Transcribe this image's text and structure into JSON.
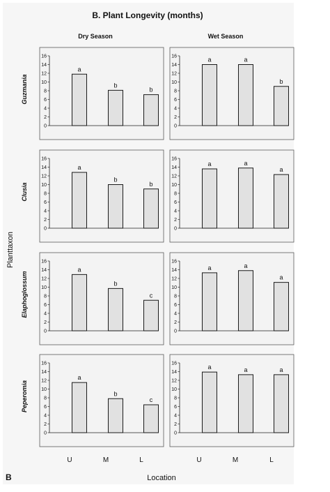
{
  "figure": {
    "title": "B.  Plant Longevity (months)",
    "panel_letter": "B",
    "row_axis_label": "Planttaxon",
    "x_axis_label": "Location",
    "column_headers": [
      "Dry Season",
      "Wet Season"
    ],
    "row_labels": [
      "Guzmania",
      "Clusia",
      "Elaphoglossum",
      "Peperomia"
    ]
  },
  "chart_data": [
    {
      "type": "bar",
      "row": "Guzmania",
      "column": "Dry Season",
      "categories": [
        "U",
        "M",
        "L"
      ],
      "values": [
        11.8,
        8.1,
        7.1
      ],
      "labels": [
        "a",
        "b",
        "b"
      ],
      "ylim": [
        0,
        16
      ],
      "yticks": [
        0,
        2,
        4,
        6,
        8,
        10,
        12,
        14,
        16
      ]
    },
    {
      "type": "bar",
      "row": "Guzmania",
      "column": "Wet Season",
      "categories": [
        "U",
        "M",
        "L"
      ],
      "values": [
        14.0,
        14.0,
        9.0
      ],
      "labels": [
        "a",
        "a",
        "b"
      ],
      "ylim": [
        0,
        16
      ],
      "yticks": [
        0,
        2,
        4,
        6,
        8,
        10,
        12,
        14,
        16
      ]
    },
    {
      "type": "bar",
      "row": "Clusia",
      "column": "Dry Season",
      "categories": [
        "U",
        "M",
        "L"
      ],
      "values": [
        12.8,
        10.0,
        9.0
      ],
      "labels": [
        "a",
        "b",
        "b"
      ],
      "ylim": [
        0,
        16
      ],
      "yticks": [
        0,
        2,
        4,
        6,
        8,
        10,
        12,
        14,
        16
      ]
    },
    {
      "type": "bar",
      "row": "Clusia",
      "column": "Wet Season",
      "categories": [
        "U",
        "M",
        "L"
      ],
      "values": [
        13.6,
        13.8,
        12.3
      ],
      "labels": [
        "a",
        "a",
        "a"
      ],
      "ylim": [
        0,
        16
      ],
      "yticks": [
        0,
        2,
        4,
        6,
        8,
        10,
        12,
        14,
        16
      ]
    },
    {
      "type": "bar",
      "row": "Elaphoglossum",
      "column": "Dry Season",
      "categories": [
        "U",
        "M",
        "L"
      ],
      "values": [
        12.9,
        9.7,
        7.0
      ],
      "labels": [
        "a",
        "b",
        "c"
      ],
      "ylim": [
        0,
        16
      ],
      "yticks": [
        0,
        2,
        4,
        6,
        8,
        10,
        12,
        14,
        16
      ]
    },
    {
      "type": "bar",
      "row": "Elaphoglossum",
      "column": "Wet Season",
      "categories": [
        "U",
        "M",
        "L"
      ],
      "values": [
        13.3,
        13.8,
        11.1
      ],
      "labels": [
        "a",
        "a",
        "a"
      ],
      "ylim": [
        0,
        16
      ],
      "yticks": [
        0,
        2,
        4,
        6,
        8,
        10,
        12,
        14,
        16
      ]
    },
    {
      "type": "bar",
      "row": "Peperomia",
      "column": "Dry Season",
      "categories": [
        "U",
        "M",
        "L"
      ],
      "values": [
        11.5,
        7.8,
        6.4
      ],
      "labels": [
        "a",
        "b",
        "c"
      ],
      "ylim": [
        0,
        16
      ],
      "yticks": [
        0,
        2,
        4,
        6,
        8,
        10,
        12,
        14,
        16
      ]
    },
    {
      "type": "bar",
      "row": "Peperomia",
      "column": "Wet Season",
      "categories": [
        "U",
        "M",
        "L"
      ],
      "values": [
        13.9,
        13.3,
        13.3
      ],
      "labels": [
        "a",
        "a",
        "a"
      ],
      "ylim": [
        0,
        16
      ],
      "yticks": [
        0,
        2,
        4,
        6,
        8,
        10,
        12,
        14,
        16
      ]
    }
  ],
  "colors": {
    "background": "#ffffff",
    "figure_background": "#f6f6f6",
    "panel_background": "#f3f3f3",
    "panel_border": "#5a5a5a",
    "bar_fill": "#e1e1e1",
    "bar_stroke": "#1a1a1a",
    "text": "#111111"
  }
}
